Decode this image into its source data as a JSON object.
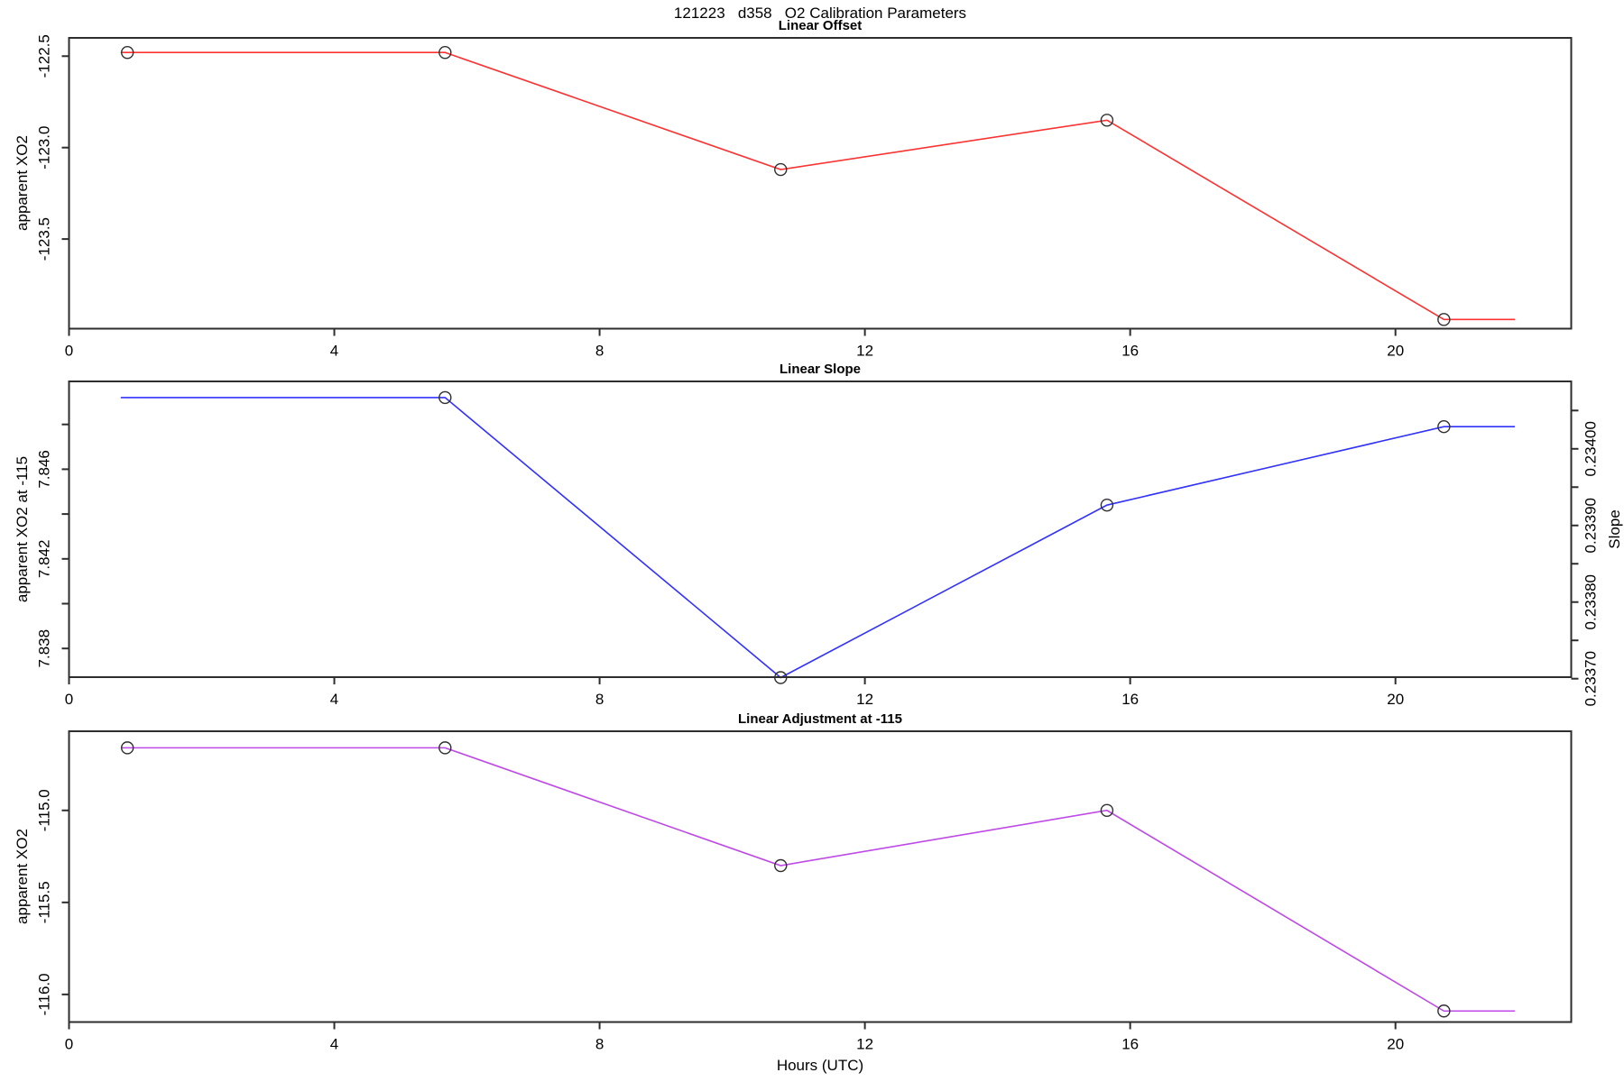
{
  "title": "121223   d358   O2 Calibration Parameters",
  "xlabel": "Hours (UTC)",
  "colors": {
    "axis": "#2e2e2e",
    "marker": "#303030",
    "text": "#000000"
  },
  "chart_data": [
    {
      "type": "line",
      "title": "Linear Offset",
      "ylabel": "apparent XO2",
      "color": "#ff3232",
      "x": [
        0.88,
        5.67,
        10.73,
        15.65,
        20.73
      ],
      "y": [
        -122.48,
        -122.48,
        -123.12,
        -122.85,
        -123.94
      ],
      "markers": [
        true,
        true,
        true,
        true,
        true
      ],
      "line_extend_x": [
        0.78,
        21.8
      ],
      "xlim": [
        0,
        22.65
      ],
      "ylim": [
        -123.99,
        -122.4
      ],
      "x_ticks": [
        0,
        4,
        8,
        12,
        16,
        20
      ],
      "x_tick_labels": [
        "0",
        "4",
        "8",
        "12",
        "16",
        "20"
      ],
      "y_ticks": [
        {
          "v": -122.5,
          "label": "-122.5"
        },
        {
          "v": -123.0,
          "label": "-123.0"
        },
        {
          "v": -123.5,
          "label": "-123.5"
        }
      ]
    },
    {
      "type": "line",
      "title": "Linear Slope",
      "ylabel": "apparent XO2 at -115",
      "right_ylabel": "Slope",
      "color": "#3232ff",
      "x": [
        0.88,
        5.67,
        10.73,
        15.65,
        20.73
      ],
      "y": [
        7.8492,
        7.8492,
        7.8367,
        7.8444,
        7.8479
      ],
      "slope_values": [
        0.23407,
        0.23407,
        0.2337,
        0.23393,
        0.23403
      ],
      "markers": [
        false,
        true,
        true,
        true,
        true
      ],
      "line_extend_x": [
        0.78,
        21.8
      ],
      "xlim": [
        0,
        22.65
      ],
      "ylim": [
        7.83672,
        7.84992
      ],
      "right_ylim": [
        0.233702,
        0.234088
      ],
      "x_ticks": [
        0,
        4,
        8,
        12,
        16,
        20
      ],
      "x_tick_labels": [
        "0",
        "4",
        "8",
        "12",
        "16",
        "20"
      ],
      "y_ticks": [
        {
          "v": 7.848,
          "label": ""
        },
        {
          "v": 7.846,
          "label": "7.846"
        },
        {
          "v": 7.844,
          "label": ""
        },
        {
          "v": 7.842,
          "label": "7.842"
        },
        {
          "v": 7.84,
          "label": ""
        },
        {
          "v": 7.838,
          "label": "7.838"
        }
      ],
      "right_y_ticks": [
        {
          "v": 0.23405,
          "label": ""
        },
        {
          "v": 0.234,
          "label": "0.23400"
        },
        {
          "v": 0.23395,
          "label": ""
        },
        {
          "v": 0.2339,
          "label": "0.23390"
        },
        {
          "v": 0.23385,
          "label": ""
        },
        {
          "v": 0.2338,
          "label": "0.23380"
        },
        {
          "v": 0.23375,
          "label": ""
        },
        {
          "v": 0.2337,
          "label": "0.23370"
        }
      ]
    },
    {
      "type": "line",
      "title": "Linear Adjustment at -115",
      "ylabel": "apparent XO2",
      "color": "#bf48e8",
      "x": [
        0.88,
        5.67,
        10.73,
        15.65,
        20.73
      ],
      "y": [
        -114.66,
        -114.66,
        -115.3,
        -115.0,
        -116.09
      ],
      "markers": [
        true,
        true,
        true,
        true,
        true
      ],
      "line_extend_x": [
        0.78,
        21.8
      ],
      "xlim": [
        0,
        22.65
      ],
      "ylim": [
        -116.15,
        -114.57
      ],
      "x_ticks": [
        0,
        4,
        8,
        12,
        16,
        20
      ],
      "x_tick_labels": [
        "0",
        "4",
        "8",
        "12",
        "16",
        "20"
      ],
      "y_ticks": [
        {
          "v": -115.0,
          "label": "-115.0"
        },
        {
          "v": -115.5,
          "label": "-115.5"
        },
        {
          "v": -116.0,
          "label": "-116.0"
        }
      ]
    }
  ]
}
